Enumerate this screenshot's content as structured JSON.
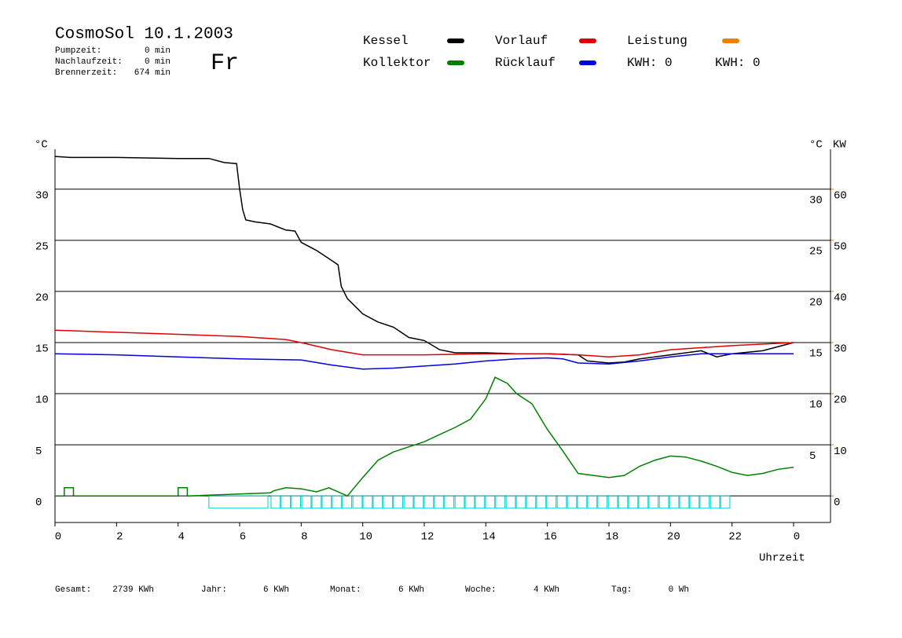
{
  "chart_data": {
    "type": "line",
    "title": "CosmoSol 10.1.2003",
    "day": "Fr",
    "stats": [
      {
        "label": "Pumpzeit:",
        "value": "0 min"
      },
      {
        "label": "Nachlaufzeit:",
        "value": "0 min"
      },
      {
        "label": "Brennerzeit:",
        "value": "674 min"
      }
    ],
    "kwh": [
      {
        "text": "KWH: 0",
        "color": "#e08000"
      },
      {
        "text": "KWH: 0",
        "color": "#800080"
      }
    ],
    "y_unit": "°C",
    "y2_unit": "KW",
    "x_label": "Uhrzeit",
    "xlim": [
      0,
      25.2
    ],
    "xticks": [
      0,
      2,
      4,
      6,
      8,
      10,
      12,
      14,
      16,
      18,
      20,
      22,
      {
        "value": 24,
        "label": "0"
      }
    ],
    "ylim": [
      -2.6,
      33.9
    ],
    "yticks": [
      0,
      5,
      10,
      15,
      20,
      25,
      30
    ],
    "y2lim": [
      -5.2,
      67.8
    ],
    "y2ticks": [
      0,
      10,
      20,
      30,
      40,
      50,
      60
    ],
    "grid": true,
    "series": [
      {
        "name": "Kessel",
        "color": "#000000",
        "x": [
          0,
          0.5,
          2,
          4,
          5,
          5.5,
          5.9,
          6.0,
          6.1,
          6.2,
          6.5,
          7,
          7.5,
          7.8,
          8.0,
          8.5,
          9,
          9.2,
          9.3,
          9.5,
          10,
          10.5,
          11,
          11.5,
          12,
          12.5,
          13,
          14,
          15,
          16,
          17,
          17.3,
          18,
          18.5,
          19,
          20,
          21,
          21.5,
          22,
          23,
          24
        ],
        "values": [
          33.2,
          33.1,
          33.1,
          33.0,
          33.0,
          32.6,
          32.5,
          30,
          28,
          27,
          26.8,
          26.6,
          26,
          25.9,
          24.8,
          24,
          23.0,
          22.6,
          20.5,
          19.3,
          17.8,
          17.0,
          16.5,
          15.5,
          15.2,
          14.3,
          14.0,
          14.0,
          13.9,
          13.9,
          13.8,
          13.2,
          13.0,
          13.1,
          13.4,
          13.8,
          14.2,
          13.6,
          13.9,
          14.2,
          15.0
        ]
      },
      {
        "name": "Kollektor",
        "color": "#008000",
        "x": [
          0,
          0.3,
          0.3,
          0.6,
          0.6,
          4,
          4,
          4.3,
          4.3,
          7,
          7.1,
          7.5,
          8,
          8.5,
          8.9,
          9.5,
          10,
          10.5,
          11,
          11.5,
          12,
          12.5,
          13,
          13.5,
          14,
          14.3,
          14.7,
          15,
          15.5,
          16,
          16.5,
          17,
          17.5,
          18,
          18.5,
          19,
          19.5,
          20,
          20.5,
          21,
          21.5,
          22,
          22.5,
          23,
          23.5,
          24
        ],
        "values": [
          0,
          0,
          0.8,
          0.8,
          0,
          0,
          0.8,
          0.8,
          0,
          0.3,
          0.5,
          0.8,
          0.7,
          0.4,
          0.8,
          0,
          1.8,
          3.5,
          4.3,
          4.8,
          5.3,
          6.0,
          6.7,
          7.5,
          9.5,
          11.6,
          11.0,
          10,
          9.0,
          6.5,
          4.4,
          2.2,
          2.0,
          1.8,
          2.0,
          2.9,
          3.5,
          3.9,
          3.8,
          3.4,
          2.9,
          2.3,
          2.0,
          2.2,
          2.6,
          2.8
        ]
      },
      {
        "name": "Vorlauf",
        "color": "#e00000",
        "x": [
          0,
          2,
          4,
          6,
          7.5,
          8,
          9,
          10,
          12,
          14,
          16,
          17,
          18,
          19,
          20,
          22,
          24
        ],
        "values": [
          16.2,
          16.0,
          15.8,
          15.6,
          15.3,
          15.0,
          14.3,
          13.8,
          13.8,
          13.9,
          13.9,
          13.8,
          13.6,
          13.8,
          14.3,
          14.7,
          15.0
        ]
      },
      {
        "name": "Rücklauf",
        "color": "#0000e0",
        "x": [
          0,
          2,
          4,
          6,
          8,
          9,
          10,
          11,
          12,
          13,
          14,
          15,
          16,
          16.5,
          17,
          18,
          19,
          20,
          21,
          22,
          24
        ],
        "values": [
          13.9,
          13.8,
          13.6,
          13.4,
          13.3,
          12.8,
          12.4,
          12.5,
          12.7,
          12.9,
          13.2,
          13.4,
          13.5,
          13.4,
          13.0,
          12.9,
          13.2,
          13.6,
          13.9,
          13.9,
          13.9
        ]
      },
      {
        "name": "Leistung",
        "color": "#f08000",
        "x": [],
        "values": []
      }
    ],
    "pulses": {
      "color": "#00d0d0",
      "level": -1.2,
      "starts": [
        5.0,
        7.02,
        7.35,
        7.68,
        8.02,
        8.35,
        8.68,
        9.01,
        9.34,
        9.68,
        10.01,
        10.34,
        10.67,
        11.0,
        11.34,
        11.67,
        12.0,
        12.33,
        12.66,
        13.0,
        13.33,
        13.66,
        13.99,
        14.32,
        14.66,
        14.99,
        15.32,
        15.65,
        15.98,
        16.32,
        16.65,
        16.98,
        17.31,
        17.64,
        17.98,
        18.31,
        18.64,
        18.97,
        19.3,
        19.64,
        19.97,
        20.3,
        20.63,
        20.96,
        21.3,
        21.63
      ],
      "ends": [
        6.92,
        7.32,
        7.65,
        7.98,
        8.32,
        8.65,
        8.98,
        9.31,
        9.64,
        9.98,
        10.31,
        10.64,
        10.97,
        11.3,
        11.64,
        11.97,
        12.3,
        12.63,
        12.96,
        13.3,
        13.63,
        13.96,
        14.29,
        14.62,
        14.96,
        15.29,
        15.62,
        15.95,
        16.28,
        16.62,
        16.95,
        17.28,
        17.61,
        17.94,
        18.28,
        18.61,
        18.94,
        19.27,
        19.6,
        19.94,
        20.27,
        20.6,
        20.93,
        21.26,
        21.6,
        21.93
      ]
    },
    "totals": [
      {
        "label": "Gesamt:",
        "value": "2739 KWh"
      },
      {
        "label": "Jahr:",
        "value": "6 KWh"
      },
      {
        "label": "Monat:",
        "value": "6 KWh"
      },
      {
        "label": "Woche:",
        "value": "4 KWh"
      },
      {
        "label": "Tag:",
        "value": "0 Wh"
      }
    ]
  }
}
